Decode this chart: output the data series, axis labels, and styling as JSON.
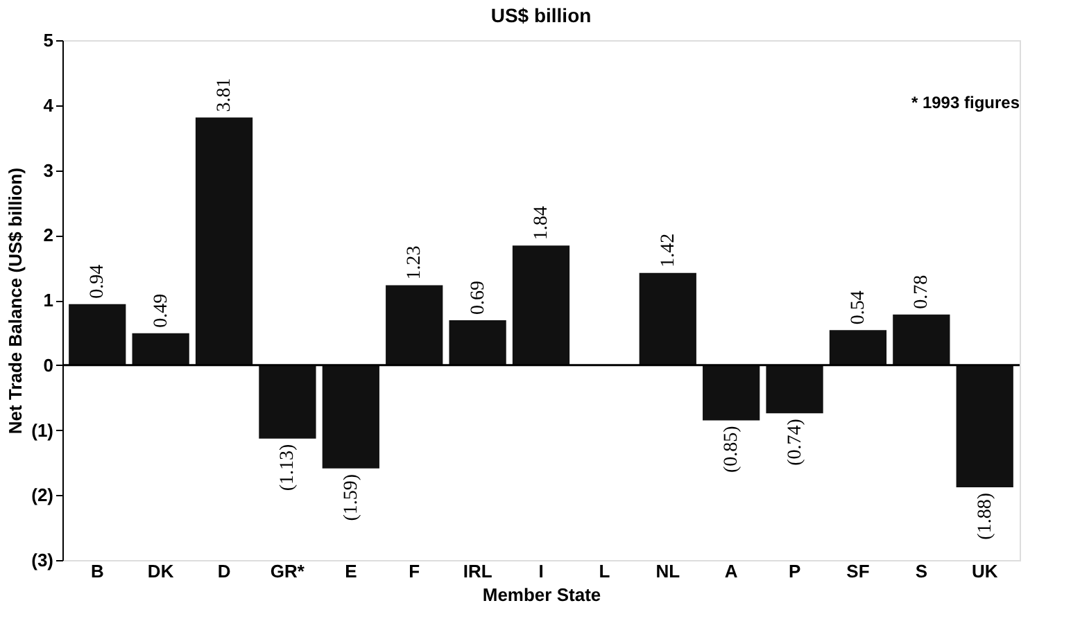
{
  "chart_data": {
    "type": "bar",
    "title": "US$ billion",
    "xlabel": "Member State",
    "ylabel": "Net Trade Balance (US$ billion)",
    "categories": [
      "B",
      "DK",
      "D",
      "GR*",
      "E",
      "F",
      "IRL",
      "I",
      "L",
      "NL",
      "A",
      "P",
      "SF",
      "S",
      "UK"
    ],
    "values": [
      0.94,
      0.49,
      3.81,
      -1.13,
      -1.59,
      1.23,
      0.69,
      1.84,
      null,
      1.42,
      -0.85,
      -0.74,
      0.54,
      0.78,
      -1.88
    ],
    "value_labels": [
      "0.94",
      "0.49",
      "3.81",
      "(1.13)",
      "(1.59)",
      "1.23",
      "0.69",
      "1.84",
      null,
      "1.42",
      "(0.85)",
      "(0.74)",
      "0.54",
      "0.78",
      "(1.88)"
    ],
    "color": "#111111",
    "ylim": [
      -3,
      5
    ],
    "yticks": [
      5,
      4,
      3,
      2,
      1,
      0,
      {
        "value": -1,
        "label": "(1)"
      },
      {
        "value": -2,
        "label": "(2)"
      },
      {
        "value": -3,
        "label": "(3)"
      }
    ],
    "ref_lines": [
      {
        "axis": "y",
        "value": 0,
        "label": null,
        "color": "#000000"
      }
    ],
    "annotations": [
      "* 1993 figures"
    ],
    "grid": false
  }
}
